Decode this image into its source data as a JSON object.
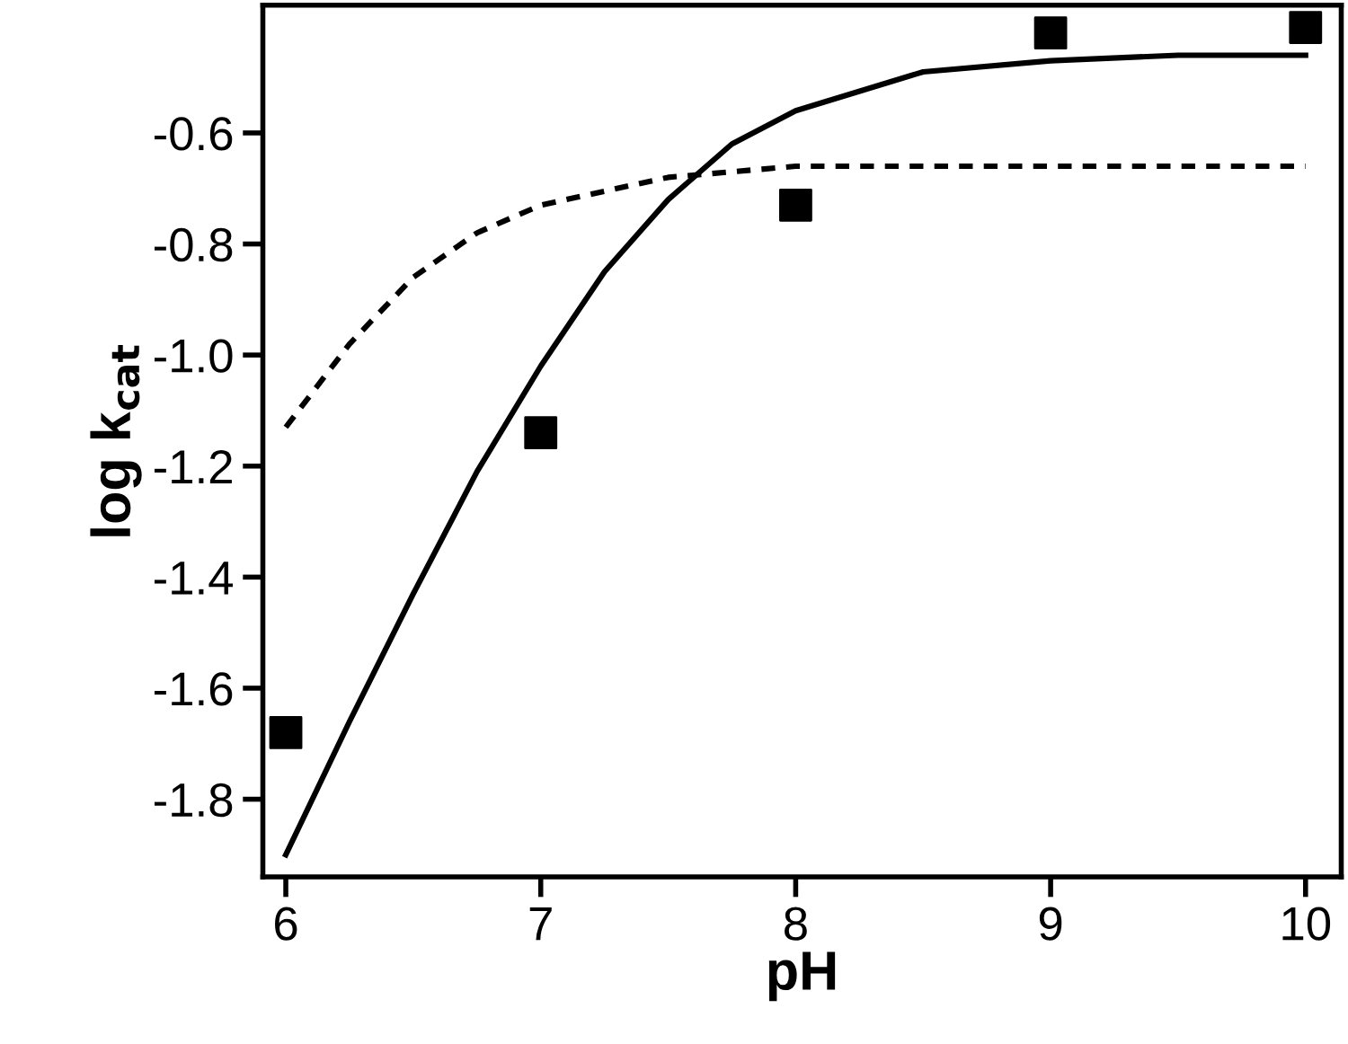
{
  "chart_data": {
    "type": "scatter",
    "xlabel": "pH",
    "ylabel": "log k$_{cat}$",
    "xlim": [
      5.91,
      10.14
    ],
    "ylim": [
      -1.94,
      -0.37
    ],
    "xticks": [
      6,
      7,
      8,
      9,
      10
    ],
    "yticks": [
      -1.8,
      -1.6,
      -1.4,
      -1.2,
      {
        "value": -1.0,
        "label": "-1.0"
      },
      -0.8,
      -0.6
    ],
    "grid": false,
    "marker": "square",
    "series": [
      {
        "color": "#000000",
        "x": [
          6,
          7,
          8,
          9,
          10
        ],
        "values": [
          -1.68,
          -1.14,
          -0.73,
          -0.42,
          -0.41
        ]
      },
      {
        "type": "line",
        "color": "#000000",
        "marker": "none",
        "line_style": "solid",
        "x": [
          6,
          6.25,
          6.5,
          6.75,
          7,
          7.25,
          7.5,
          7.75,
          8,
          8.5,
          9,
          9.5,
          10
        ],
        "values": [
          -1.9,
          -1.66,
          -1.43,
          -1.21,
          -1.02,
          -0.85,
          -0.72,
          -0.62,
          -0.56,
          -0.49,
          -0.47,
          -0.46,
          -0.46
        ]
      },
      {
        "type": "line",
        "color": "#000000",
        "marker": "none",
        "line_style": "dashed",
        "x": [
          6,
          6.25,
          6.5,
          6.75,
          7,
          7.5,
          8,
          9,
          10
        ],
        "values": [
          -1.13,
          -0.98,
          -0.86,
          -0.78,
          -0.73,
          -0.68,
          -0.66,
          -0.66,
          -0.66
        ]
      }
    ]
  }
}
